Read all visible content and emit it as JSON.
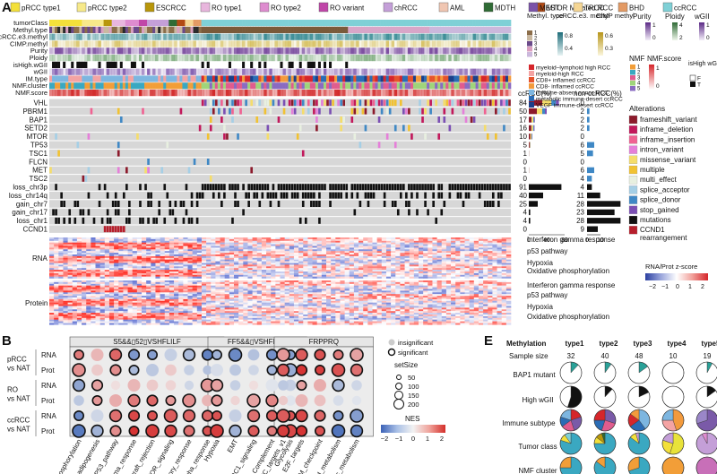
{
  "panels": {
    "A": "A",
    "B": "B",
    "E": "E"
  },
  "panelA": {
    "legend_top": [
      {
        "label": "pRCC type1",
        "color": "#f3e03a"
      },
      {
        "label": "pRCC type2",
        "color": "#f7e98a"
      },
      {
        "label": "ESCRCC",
        "color": "#b8960a"
      },
      {
        "label": "RO type1",
        "color": "#e8b6dd"
      },
      {
        "label": "RO type2",
        "color": "#de8ccf"
      },
      {
        "label": "RO variant",
        "color": "#c046a8"
      },
      {
        "label": "chRCC",
        "color": "#c49fd8"
      },
      {
        "label": "AML",
        "color": "#f0c6b2"
      },
      {
        "label": "MDTH",
        "color": "#2f6b35"
      },
      {
        "label": "MTOR Mutated RCC",
        "color": "#b24a14"
      },
      {
        "label": "MEST",
        "color": "#7b52a8"
      },
      {
        "label": "TRCC",
        "color": "#f5d694"
      },
      {
        "label": "BHD",
        "color": "#e39a64"
      },
      {
        "label": "ccRCC",
        "color": "#7fd0d6"
      }
    ],
    "track_labels": [
      "tumorClass",
      "Methyl.type",
      "ccRCC.e3.methyl",
      "CIMP.methyl",
      "Purity",
      "Ploidy",
      "isHigh.wGII",
      "wGII",
      "IM.type",
      "NMF.cluster",
      "NMF.score"
    ],
    "gene_labels": [
      "VHL",
      "PBRM1",
      "BAP1",
      "SETD2",
      "MTOR",
      "TP53",
      "TSC1",
      "FLCN",
      "MET",
      "TSC2",
      "loss_chr3p",
      "loss_chr14q",
      "gain_chr7",
      "gain_chr17",
      "loss_chr1",
      "CCND1"
    ],
    "ccrcc_pct_header": "ccRCC(%)",
    "nonccrcc_pct_header": "non-ccRCC(%)",
    "ccrcc_pct": [
      "84",
      "50",
      "17",
      "16",
      "10",
      "5",
      "1",
      "0",
      "1",
      "0",
      "91",
      "40",
      "25",
      "4",
      "4",
      "0"
    ],
    "nonccrcc_pct": [
      "0",
      "2",
      "2",
      "2",
      "0",
      "6",
      "5",
      "0",
      "6",
      "4",
      "4",
      "11",
      "28",
      "23",
      "28",
      "9"
    ],
    "ccrcc_axis": [
      "0",
      "40",
      "80"
    ],
    "nonccrcc_axis": [
      "0",
      "10"
    ],
    "im_types": [
      {
        "label": "myeloid–lymphoid high RCC",
        "color": "#d6262b"
      },
      {
        "label": "myeloid-high RCC",
        "color": "#f4a3a3"
      },
      {
        "label": "CD8+ inflamed ccRCC",
        "color": "#e5532d"
      },
      {
        "label": "CD8- inflamed ccRCC",
        "color": "#f39a3c"
      },
      {
        "label": "immune-absent noncc RCC",
        "color": "#7db6e0"
      },
      {
        "label": "metabolic immune-desert ccRCC",
        "color": "#2a6cb5"
      },
      {
        "label": "VEGF immune-desert ccRCC",
        "color": "#1b3f8a"
      }
    ],
    "methyl_legend_title": "Methyl. type",
    "methyl_legend_values": [
      "1",
      "2",
      "3",
      "4",
      "5"
    ],
    "e3_legend_title": "ccRCC.e3. methyl",
    "e3_legend_values": [
      "0.8",
      "0.4"
    ],
    "cimp_legend_title": "CIMP methyl",
    "cimp_legend_values": [
      "0.6",
      "0.3"
    ],
    "purity_title": "Purity",
    "purity_values": [
      "1",
      "0"
    ],
    "ploidy_title": "Ploidy",
    "ploidy_values": [
      "4",
      "2"
    ],
    "wgii_title": "wGII",
    "wgii_values": [
      "1",
      "0"
    ],
    "nmf_title": "NMF",
    "nmf_values": [
      "1",
      "2",
      "3",
      "4",
      "5"
    ],
    "nmfscore_title": "NMF.score",
    "nmfscore_values": [
      "1",
      "0"
    ],
    "ishigh_title": "isHigh wGII",
    "ishigh_values": [
      "F",
      "T"
    ],
    "alterations_title": "Alterations",
    "alterations": [
      {
        "label": "frameshift_variant",
        "color": "#8c1a2b"
      },
      {
        "label": "inframe_deletion",
        "color": "#c2185b"
      },
      {
        "label": "inframe_insertion",
        "color": "#f06292"
      },
      {
        "label": "intron_variant",
        "color": "#e57fd9"
      },
      {
        "label": "missense_variant",
        "color": "#f5dd6b"
      },
      {
        "label": "multiple",
        "color": "#f1c232"
      },
      {
        "label": "multi_effect",
        "color": "#e8f0e0"
      },
      {
        "label": "splice_acceptor",
        "color": "#a5cfe6"
      },
      {
        "label": "splice_donor",
        "color": "#3f88c5"
      },
      {
        "label": "stop_gained",
        "color": "#7b4fb4"
      },
      {
        "label": "mutations",
        "color": "#111111"
      },
      {
        "label": "CCND1 rearrangement",
        "color": "#b61f2c"
      }
    ],
    "rna_label": "RNA",
    "protein_label": "Protein",
    "pathways": [
      "Interferon gamma response",
      "p53 pathway",
      "Hypoxia",
      "Oxidative phosphorylation"
    ],
    "zscore_title": "RNA/Prot z-score",
    "zscore_ticks": [
      "−2",
      "−1",
      "0",
      "1",
      "2"
    ]
  },
  "panelB": {
    "group_headers": [
      "S5&&▯52▯VSHFLILF",
      "FF5&&▯VSHFLILF",
      "FRPPRQ"
    ],
    "comparisons": [
      "pRCC vs NAT",
      "RO vs NAT",
      "ccRCC vs NAT"
    ],
    "row_types": [
      "RNA",
      "Prot",
      "RNA",
      "Prot",
      "RNA",
      "Prot"
    ],
    "x_labels": [
      "ive_phosphorylation",
      "adipogenesis",
      "P53_pathway",
      "gamma_response",
      "Allograft_rejection",
      "MTOR_signaling",
      "nmatory_response",
      "n_alpha_response",
      "Hypoxia",
      "EMT",
      "MTORC1_signaling",
      "Complement",
      "Glycolysis",
      "MYC_targets_v1",
      "E2F_targets",
      "G2M_checkpoint",
      "_acid_metabolism",
      "abolic_metabolism"
    ],
    "legend_sig_labels": [
      "insignificant",
      "significant"
    ],
    "setsize_title": "setSize",
    "setsize_values": [
      "50",
      "100",
      "150",
      "200"
    ],
    "nes_title": "NES",
    "nes_ticks": [
      "−2",
      "−1",
      "0",
      "1",
      "2"
    ]
  },
  "panelE": {
    "header_label": "Methylation",
    "types": [
      "type1",
      "type2",
      "type3",
      "type4",
      "type5"
    ],
    "sample_size_label": "Sample size",
    "sample_sizes": [
      "32",
      "40",
      "48",
      "10",
      "19"
    ],
    "row_labels": [
      "BAP1 mutant",
      "High wGII",
      "Immune subtype",
      "Tumor class",
      "NMF cluster"
    ]
  },
  "chart_data": [
    {
      "type": "bar",
      "title": "ccRCC(%)",
      "categories": [
        "VHL",
        "PBRM1",
        "BAP1",
        "SETD2",
        "MTOR",
        "TP53",
        "TSC1",
        "FLCN",
        "MET",
        "TSC2",
        "loss_chr3p",
        "loss_chr14q",
        "gain_chr7",
        "gain_chr17",
        "loss_chr1",
        "CCND1"
      ],
      "values": [
        84,
        50,
        17,
        16,
        10,
        5,
        1,
        0,
        1,
        0,
        91,
        40,
        25,
        4,
        4,
        0
      ]
    },
    {
      "type": "bar",
      "title": "non-ccRCC(%)",
      "categories": [
        "VHL",
        "PBRM1",
        "BAP1",
        "SETD2",
        "MTOR",
        "TP53",
        "TSC1",
        "FLCN",
        "MET",
        "TSC2",
        "loss_chr3p",
        "loss_chr14q",
        "gain_chr7",
        "gain_chr17",
        "loss_chr1",
        "CCND1"
      ],
      "values": [
        0,
        2,
        2,
        2,
        0,
        6,
        5,
        0,
        6,
        4,
        4,
        11,
        28,
        23,
        28,
        9
      ]
    },
    {
      "type": "scatter",
      "title": "",
      "series": [
        {
          "values": [
            [
              1.2,
              0.6,
              1.4,
              -1.3,
              -1.2,
              -0.5,
              -0.8,
              -1.6,
              -0.9,
              -1.5,
              -0.7,
              -1.4,
              -1.2,
              0.9,
              1.5,
              1.6,
              1.2,
              0.8
            ]
          ]
        },
        {
          "values": [
            [
              1.0,
              0.4,
              1.0,
              -0.8,
              -0.6,
              0.4,
              -0.5,
              -0.7,
              -0.3,
              -0.6,
              -0.4,
              -0.9,
              -1.0,
              1.5,
              1.9,
              1.8,
              1.6,
              1.3
            ]
          ]
        },
        {
          "values": [
            [
              -1.1,
              0.8,
              0.2,
              0.6,
              0.4,
              0.3,
              -0.4,
              0.9,
              0.8,
              -0.5,
              0.2,
              -0.2,
              -0.5,
              -0.6,
              0.8,
              0.7,
              -0.8,
              -0.4
            ]
          ]
        },
        {
          "values": [
            [
              -0.6,
              0.9,
              0.7,
              1.2,
              1.4,
              0.9,
              1.0,
              0.6,
              0.9,
              0.3,
              0.8,
              1.1,
              -0.2,
              0.4,
              0.6,
              0.5,
              -0.3,
              -0.2
            ]
          ]
        },
        {
          "values": [
            [
              -1.5,
              -0.4,
              1.3,
              1.7,
              1.6,
              1.5,
              1.4,
              1.4,
              1.6,
              -0.5,
              1.3,
              1.5,
              1.6,
              1.5,
              1.7,
              1.4,
              -1.4,
              -1.2
            ]
          ]
        },
        {
          "values": [
            [
              -1.7,
              -0.9,
              1.0,
              1.9,
              1.8,
              1.7,
              1.3,
              1.6,
              1.8,
              -0.9,
              1.5,
              1.2,
              1.7,
              1.8,
              1.9,
              1.6,
              -1.8,
              -1.6
            ]
          ]
        }
      ]
    }
  ]
}
